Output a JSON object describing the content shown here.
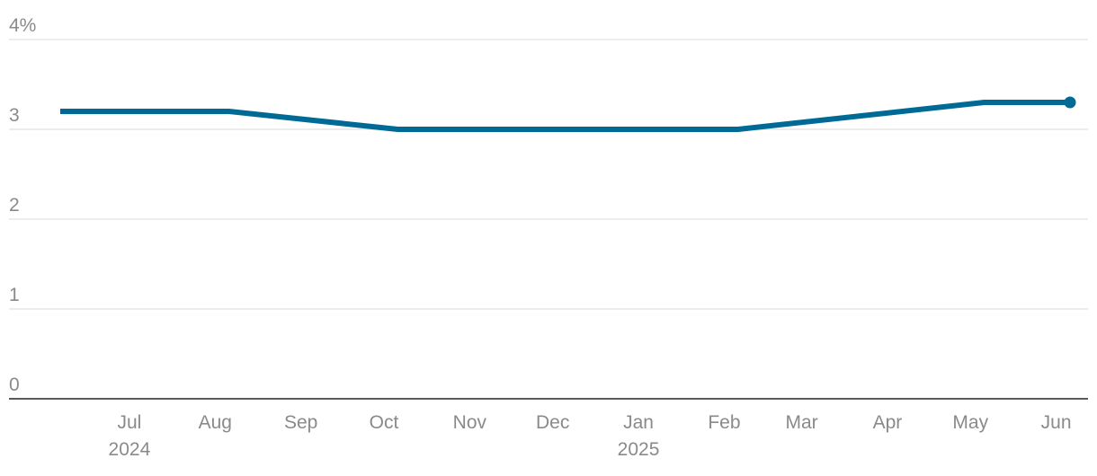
{
  "chart_data": {
    "type": "line",
    "y_unit_suffix": "%",
    "ylim": [
      0,
      4
    ],
    "y_ticks": [
      "0",
      "1",
      "2",
      "3",
      "4%"
    ],
    "x_month_labels": [
      "Jul",
      "Aug",
      "Sep",
      "Oct",
      "Nov",
      "Dec",
      "Jan",
      "Feb",
      "Mar",
      "Apr",
      "May",
      "Jun"
    ],
    "x_year_labels": [
      {
        "label": "2024",
        "under": "Jul"
      },
      {
        "label": "2025",
        "under": "Jan"
      }
    ],
    "series": [
      {
        "color": "#006a96",
        "points": [
          {
            "x": "2024-06-15",
            "y": 3.2
          },
          {
            "x": "2024-08-15",
            "y": 3.2
          },
          {
            "x": "2024-10-15",
            "y": 3.0
          },
          {
            "x": "2025-02-15",
            "y": 3.0
          },
          {
            "x": "2025-05-15",
            "y": 3.3
          },
          {
            "x": "2025-06-15",
            "y": 3.3
          }
        ]
      }
    ],
    "grid": true,
    "legend": "none"
  }
}
